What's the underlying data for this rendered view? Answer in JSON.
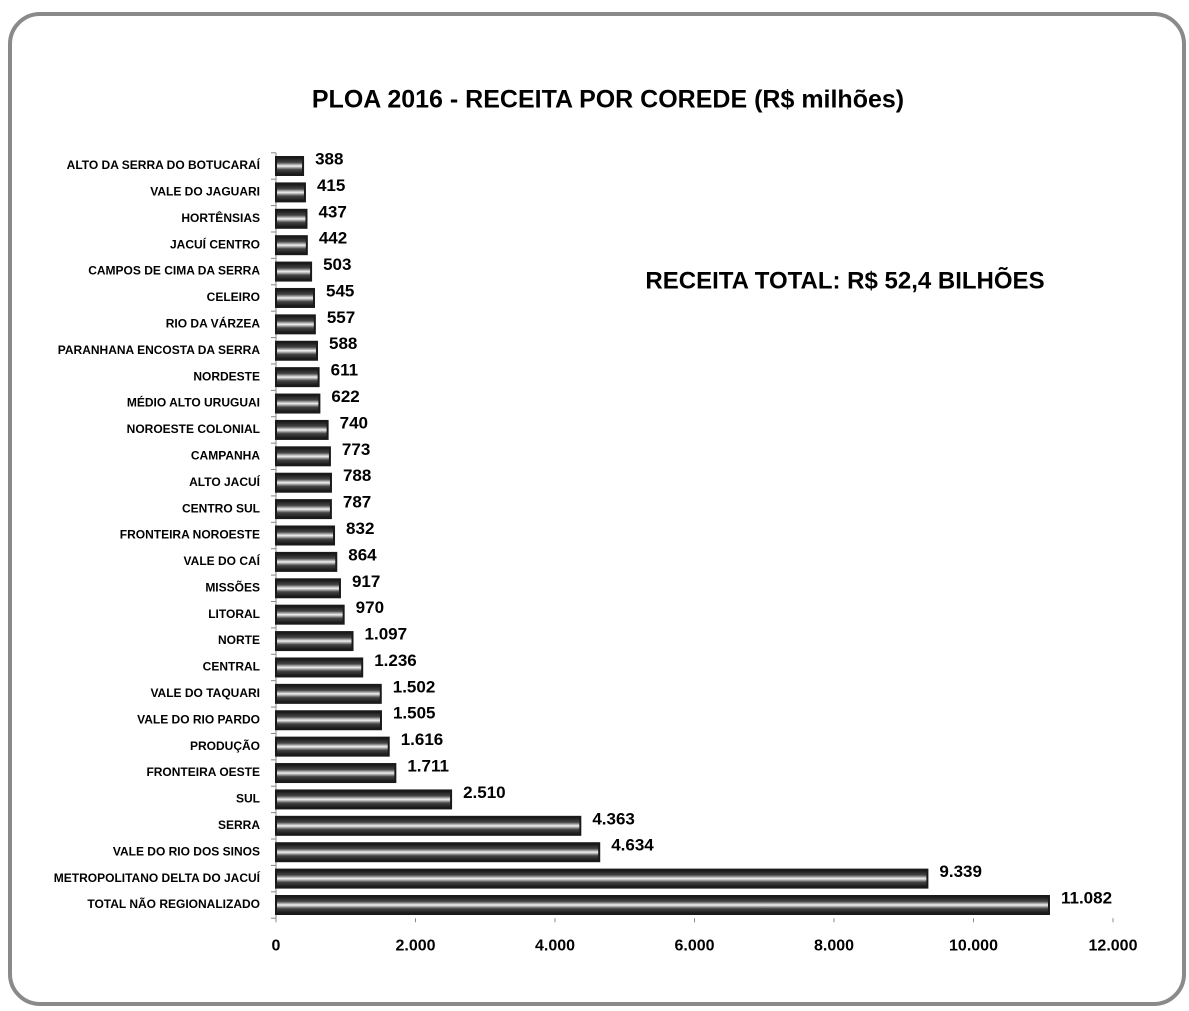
{
  "chart_data": {
    "type": "bar",
    "orientation": "horizontal",
    "title": "PLOA 2016 - RECEITA POR COREDE (R$ milhões)",
    "annotation": "RECEITA TOTAL:  R$ 52,4 BILHÕES",
    "categories": [
      "ALTO DA SERRA DO BOTUCARAÍ",
      "VALE DO JAGUARI",
      "HORTÊNSIAS",
      "JACUÍ CENTRO",
      "CAMPOS DE CIMA DA SERRA",
      "CELEIRO",
      "RIO DA VÁRZEA",
      "PARANHANA ENCOSTA DA SERRA",
      "NORDESTE",
      "MÉDIO ALTO URUGUAI",
      "NOROESTE COLONIAL",
      "CAMPANHA",
      "ALTO JACUÍ",
      "CENTRO SUL",
      "FRONTEIRA NOROESTE",
      "VALE DO CAÍ",
      "MISSÕES",
      "LITORAL",
      "NORTE",
      "CENTRAL",
      "VALE DO TAQUARI",
      "VALE DO RIO PARDO",
      "PRODUÇÃO",
      "FRONTEIRA OESTE",
      "SUL",
      "SERRA",
      "VALE DO RIO DOS SINOS",
      "METROPOLITANO DELTA DO JACUÍ",
      "TOTAL NÃO REGIONALIZADO"
    ],
    "values": [
      388,
      415,
      437,
      442,
      503,
      545,
      557,
      588,
      611,
      622,
      740,
      773,
      788,
      787,
      832,
      864,
      917,
      970,
      1097,
      1236,
      1502,
      1505,
      1616,
      1711,
      2510,
      4363,
      4634,
      9339,
      11082
    ],
    "value_labels": [
      "388",
      "415",
      "437",
      "442",
      "503",
      "545",
      "557",
      "588",
      "611",
      "622",
      "740",
      "773",
      "788",
      "787",
      "832",
      "864",
      "917",
      "970",
      "1.097",
      "1.236",
      "1.502",
      "1.505",
      "1.616",
      "1.711",
      "2.510",
      "4.363",
      "4.634",
      "9.339",
      "11.082"
    ],
    "color": "#1a1a1a",
    "xlim": [
      0,
      12000
    ],
    "xticks": [
      0,
      {
        "value": 2000,
        "label": "2.000"
      },
      {
        "value": 4000,
        "label": "4.000"
      },
      {
        "value": 6000,
        "label": "6.000"
      },
      {
        "value": 8000,
        "label": "8.000"
      },
      {
        "value": 10000,
        "label": "10.000"
      },
      {
        "value": 12000,
        "label": "12.000"
      }
    ],
    "grid": false
  }
}
